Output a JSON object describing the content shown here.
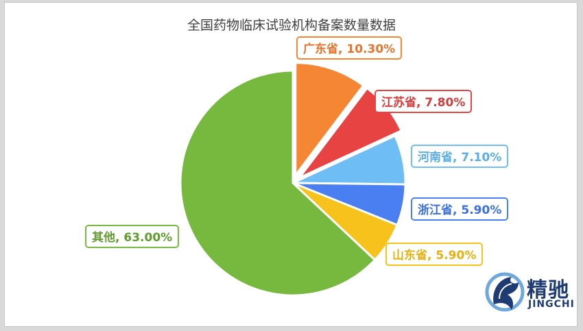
{
  "chart_data": {
    "type": "pie",
    "title": "全国药物临床试验机构备案数量数据",
    "slices": [
      {
        "label": "广东省",
        "value": 10.3,
        "display": "广东省, 10.30%",
        "color": "#f58634",
        "text_color": "#e8732a",
        "exploded": true
      },
      {
        "label": "江苏省",
        "value": 7.8,
        "display": "江苏省, 7.80%",
        "color": "#e84343",
        "text_color": "#d63a3a",
        "exploded": true
      },
      {
        "label": "河南省",
        "value": 7.1,
        "display": "河南省, 7.10%",
        "color": "#6fbdf5",
        "text_color": "#59aee8",
        "exploded": false
      },
      {
        "label": "浙江省",
        "value": 5.9,
        "display": "浙江省, 5.90%",
        "color": "#4a7ff2",
        "text_color": "#3a6fe0",
        "exploded": false
      },
      {
        "label": "山东省",
        "value": 5.9,
        "display": "山东省, 5.90%",
        "color": "#f7c21b",
        "text_color": "#e6b010",
        "exploded": false
      },
      {
        "label": "其他",
        "value": 63.0,
        "display": "其他, 63.00%",
        "color": "#77b83f",
        "text_color": "#5e9c2c",
        "exploded": false
      }
    ],
    "legend": "none",
    "data_labels": true
  },
  "logo": {
    "name": "精驰",
    "pinyin": "JINGCHI",
    "color": "#1f3b73"
  }
}
